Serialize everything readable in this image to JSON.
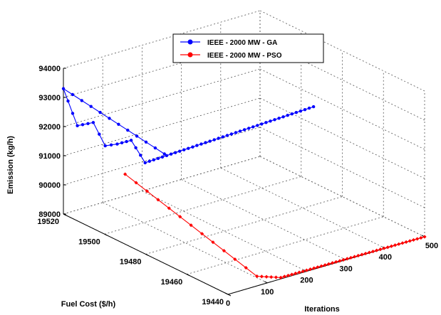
{
  "chart_data": {
    "type": "line3d",
    "title": "",
    "xlabel": "Iterations",
    "ylabel": "Fuel Cost ($/h)",
    "zlabel": "Emission (kg/h)",
    "xlim": [
      0,
      500
    ],
    "ylim": [
      19440,
      19520
    ],
    "zlim": [
      89000,
      94000
    ],
    "xticks": [
      "0",
      "100",
      "200",
      "300",
      "400",
      "500"
    ],
    "yticks": [
      "19440",
      "19460",
      "19480",
      "19500",
      "19520"
    ],
    "zticks": [
      "89000",
      "90000",
      "91000",
      "92000",
      "93000",
      "94000"
    ],
    "grid": true,
    "legend": "top-center",
    "series": [
      {
        "name": "IEEE - 2000 MW - GA",
        "color": "#0000ff",
        "marker": "circle",
        "points": [
          [
            100,
            19490,
            91700
          ],
          [
            0,
            19520,
            93300
          ],
          [
            25,
            19518,
            92000
          ],
          [
            55,
            19516,
            92060
          ],
          [
            75,
            19514,
            91250
          ],
          [
            95,
            19512,
            91300
          ],
          [
            120,
            19510,
            91400
          ],
          [
            145,
            19508,
            90600
          ],
          [
            500,
            19494,
            91600
          ]
        ]
      },
      {
        "name": "IEEE - 2000 MW - PSO",
        "color": "#ff0000",
        "marker": "diamond",
        "points": [
          [
            0,
            19490,
            91400
          ],
          [
            105,
            19446,
            89000
          ],
          [
            150,
            19443,
            88880
          ],
          [
            500,
            19440,
            89000
          ]
        ]
      }
    ]
  }
}
